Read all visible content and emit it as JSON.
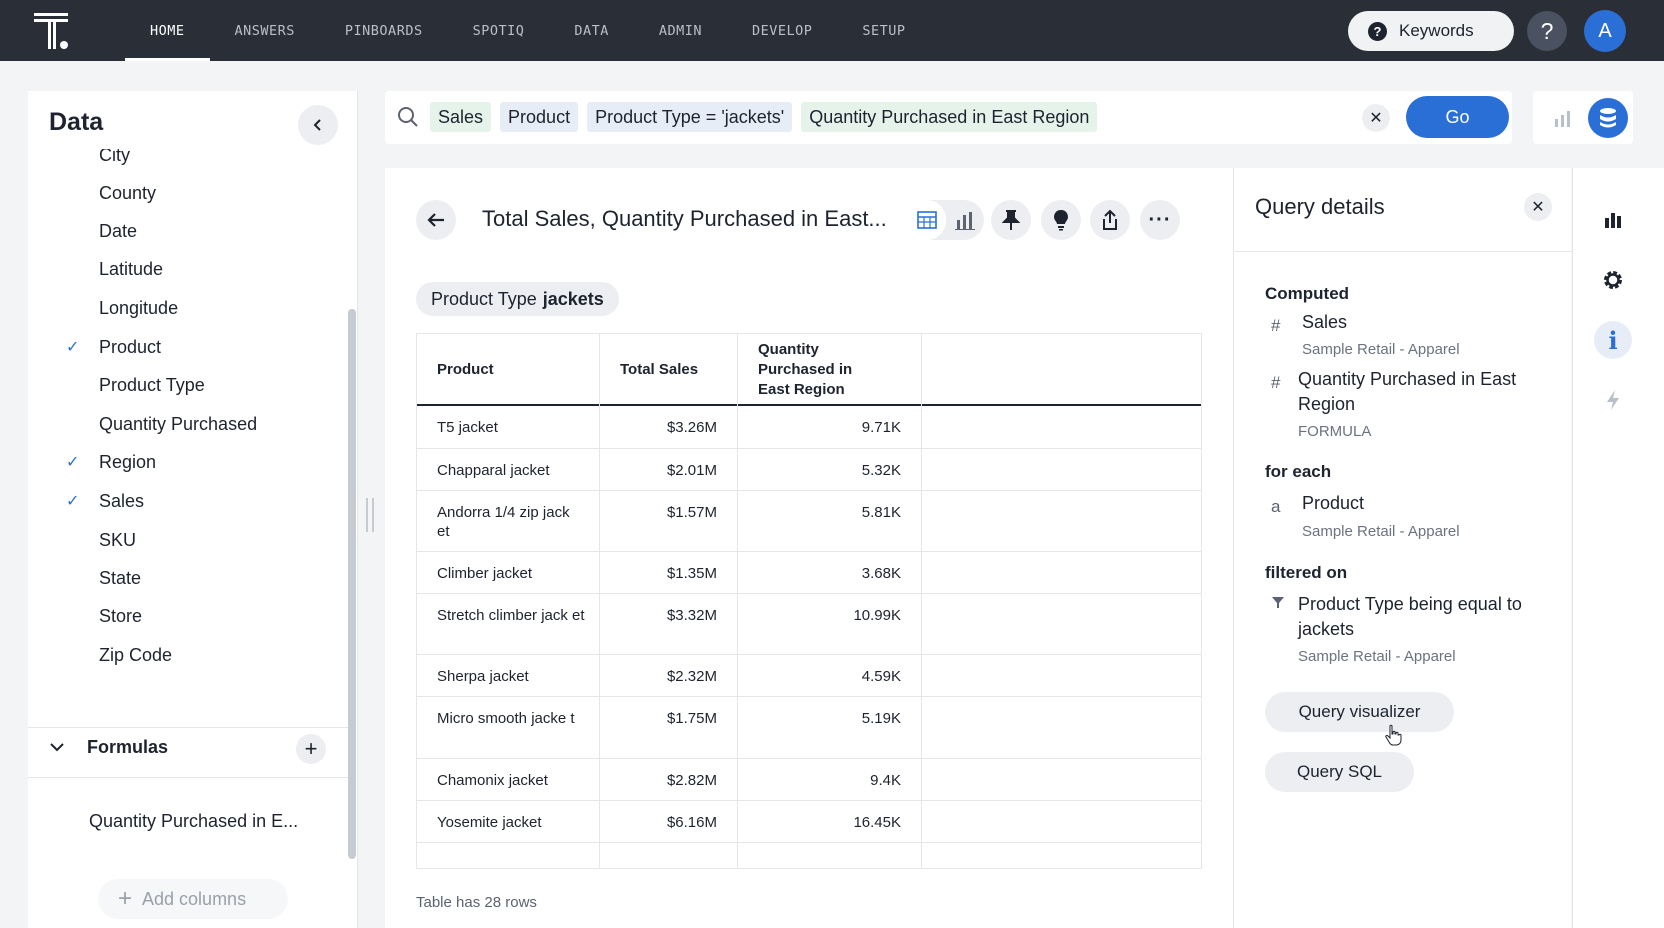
{
  "nav": {
    "tabs": [
      {
        "label": "HOME"
      },
      {
        "label": "ANSWERS"
      },
      {
        "label": "PINBOARDS"
      },
      {
        "label": "SPOTIQ"
      },
      {
        "label": "DATA"
      },
      {
        "label": "ADMIN"
      },
      {
        "label": "DEVELOP"
      },
      {
        "label": "SETUP"
      }
    ],
    "active_tab": "HOME",
    "keywords_label": "Keywords",
    "help_label": "?",
    "avatar_initial": "A"
  },
  "data_panel": {
    "title": "Data",
    "columns": [
      {
        "label": "City",
        "checked": false
      },
      {
        "label": "County",
        "checked": false
      },
      {
        "label": "Date",
        "checked": false
      },
      {
        "label": "Latitude",
        "checked": false
      },
      {
        "label": "Longitude",
        "checked": false
      },
      {
        "label": "Product",
        "checked": true
      },
      {
        "label": "Product Type",
        "checked": false
      },
      {
        "label": "Quantity Purchased",
        "checked": false
      },
      {
        "label": "Region",
        "checked": true
      },
      {
        "label": "Sales",
        "checked": true
      },
      {
        "label": "SKU",
        "checked": false
      },
      {
        "label": "State",
        "checked": false
      },
      {
        "label": "Store",
        "checked": false
      },
      {
        "label": "Zip Code",
        "checked": false
      }
    ],
    "formulas_label": "Formulas",
    "formula_items": [
      "Quantity Purchased in E..."
    ],
    "add_columns_label": "Add columns"
  },
  "search": {
    "tokens": [
      {
        "text": "Sales",
        "kind": "green"
      },
      {
        "text": "Product",
        "kind": "blue"
      },
      {
        "text": "Product Type = 'jackets'",
        "kind": "blue"
      },
      {
        "text": "Quantity Purchased in East Region",
        "kind": "green"
      }
    ],
    "go_label": "Go"
  },
  "answer": {
    "title": "Total Sales, Quantity Purchased in East...",
    "filter_chip": {
      "name": "Product Type",
      "value": "jackets"
    },
    "table": {
      "headers": [
        "Product",
        "Total Sales",
        "Quantity Purchased in East Region"
      ],
      "rows": [
        {
          "product": "T5 jacket",
          "sales": "$3.26M",
          "qty": "9.71K"
        },
        {
          "product": "Chapparal jacket",
          "sales": "$2.01M",
          "qty": "5.32K"
        },
        {
          "product": "Andorra 1/4 zip jack et",
          "sales": "$1.57M",
          "qty": "5.81K"
        },
        {
          "product": "Climber jacket",
          "sales": "$1.35M",
          "qty": "3.68K"
        },
        {
          "product": "Stretch climber jack et",
          "sales": "$3.32M",
          "qty": "10.99K"
        },
        {
          "product": "Sherpa jacket",
          "sales": "$2.32M",
          "qty": "4.59K"
        },
        {
          "product": "Micro smooth jacke t",
          "sales": "$1.75M",
          "qty": "5.19K"
        },
        {
          "product": "Chamonix jacket",
          "sales": "$2.82M",
          "qty": "9.4K"
        },
        {
          "product": "Yosemite jacket",
          "sales": "$6.16M",
          "qty": "16.45K"
        }
      ]
    },
    "row_count": "Table has 28 rows"
  },
  "query_details": {
    "title": "Query details",
    "computed_label": "Computed",
    "computed": [
      {
        "icon": "#",
        "name": "Sales",
        "source": "Sample Retail - Apparel"
      },
      {
        "icon": "#",
        "name": "Quantity Purchased in East Region",
        "source": "FORMULA"
      }
    ],
    "for_each_label": "for each",
    "for_each": [
      {
        "icon": "a",
        "name": "Product",
        "source": "Sample Retail - Apparel"
      }
    ],
    "filtered_on_label": "filtered on",
    "filtered_on": [
      {
        "name": "Product Type being equal to jackets",
        "source": "Sample Retail - Apparel"
      }
    ],
    "query_visualizer_label": "Query visualizer",
    "query_sql_label": "Query SQL"
  },
  "colors": {
    "nav_bg": "#2a2f37",
    "accent": "#2a6fd6",
    "token_green": "#e6f3ea",
    "token_blue": "#e7edf6"
  }
}
